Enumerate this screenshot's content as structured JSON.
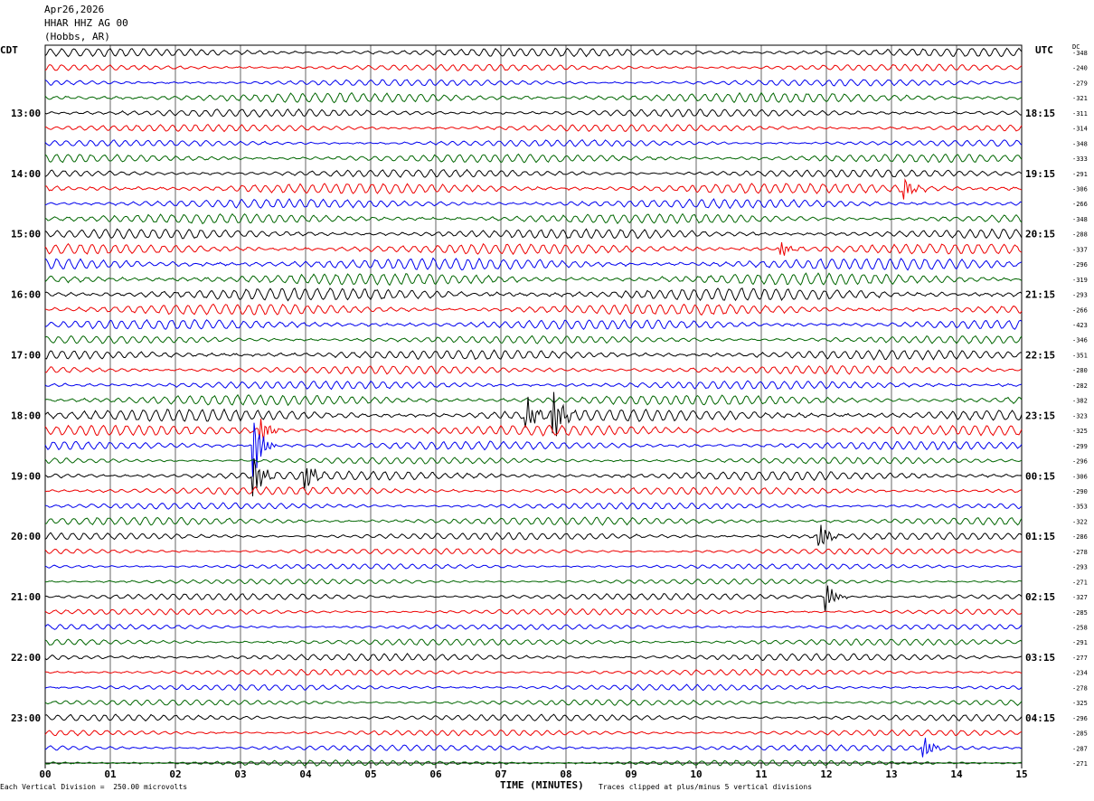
{
  "header": {
    "date": "Apr26,2026",
    "station": "HHAR HHZ AG 00",
    "location": "(Hobbs, AR)"
  },
  "left_label": "CDT",
  "right_label": "UTC",
  "dc_label": "DC",
  "footer": {
    "scale_note": "Each Vertical Division =  250.00 microvolts",
    "xlabel": "TIME (MINUTES)",
    "clip_note": "Traces clipped at plus/minus 5 vertical divisions"
  },
  "colors": {
    "trace_cycle": [
      "#000000",
      "#ee0000",
      "#0000ee",
      "#006600"
    ],
    "grid": "#000000"
  },
  "chart_data": {
    "type": "line",
    "title": "",
    "xlabel": "TIME (MINUTES)",
    "x_range": [
      0,
      15
    ],
    "x_ticks": [
      "00",
      "01",
      "02",
      "03",
      "04",
      "05",
      "06",
      "07",
      "08",
      "09",
      "10",
      "11",
      "12",
      "13",
      "14",
      "15"
    ],
    "rows_per_hour": 4,
    "row_minutes": 15,
    "left_hour_labels": [
      {
        "row": 4,
        "label": "13:00"
      },
      {
        "row": 8,
        "label": "14:00"
      },
      {
        "row": 12,
        "label": "15:00"
      },
      {
        "row": 16,
        "label": "16:00"
      },
      {
        "row": 20,
        "label": "17:00"
      },
      {
        "row": 24,
        "label": "18:00"
      },
      {
        "row": 28,
        "label": "19:00"
      },
      {
        "row": 32,
        "label": "20:00"
      },
      {
        "row": 36,
        "label": "21:00"
      },
      {
        "row": 40,
        "label": "22:00"
      },
      {
        "row": 44,
        "label": "23:00"
      }
    ],
    "right_hour_labels": [
      {
        "row": 4,
        "label": "18:15"
      },
      {
        "row": 8,
        "label": "19:15"
      },
      {
        "row": 12,
        "label": "20:15"
      },
      {
        "row": 16,
        "label": "21:15"
      },
      {
        "row": 20,
        "label": "22:15"
      },
      {
        "row": 24,
        "label": "23:15"
      },
      {
        "row": 28,
        "label": "00:15"
      },
      {
        "row": 32,
        "label": "01:15"
      },
      {
        "row": 36,
        "label": "02:15"
      },
      {
        "row": 40,
        "label": "03:15"
      },
      {
        "row": 44,
        "label": "04:15"
      }
    ],
    "dc_offsets": [
      "-348",
      "-240",
      "-279",
      "-321",
      "-311",
      "-314",
      "-348",
      "-333",
      "-291",
      "-306",
      "-266",
      "-348",
      "-288",
      "-337",
      "-296",
      "-319",
      "-293",
      "-266",
      "-423",
      "-346",
      "-351",
      "-280",
      "-282",
      "-382",
      "-323",
      "-325",
      "-299",
      "-296",
      "-306",
      "-290",
      "-353",
      "-322",
      "-286",
      "-278",
      "-293",
      "-271",
      "-327",
      "-285",
      "-258",
      "-291",
      "-277",
      "-234",
      "-278",
      "-325",
      "-296",
      "-285",
      "-287",
      "-271"
    ],
    "trace_amplitude_divisions": [
      1.3,
      1.0,
      1.0,
      1.5,
      1.2,
      1.1,
      1.0,
      1.3,
      1.2,
      1.6,
      1.4,
      1.5,
      1.5,
      1.6,
      1.8,
      1.8,
      1.9,
      1.7,
      1.5,
      1.2,
      1.5,
      1.3,
      1.3,
      1.6,
      1.9,
      1.6,
      1.3,
      1.0,
      1.4,
      1.2,
      1.0,
      1.2,
      1.1,
      0.9,
      0.8,
      0.8,
      1.0,
      0.9,
      0.8,
      1.0,
      1.1,
      0.9,
      0.9,
      0.9,
      1.0,
      0.9,
      0.9,
      0.9
    ],
    "events": [
      {
        "row": 9,
        "minute": 13.2,
        "amplitude": 4
      },
      {
        "row": 13,
        "minute": 11.3,
        "amplitude": 3
      },
      {
        "row": 24,
        "minute": 7.4,
        "amplitude": 6
      },
      {
        "row": 24,
        "minute": 7.8,
        "amplitude": 10
      },
      {
        "row": 25,
        "minute": 3.3,
        "amplitude": 5
      },
      {
        "row": 26,
        "minute": 3.2,
        "amplitude": 12
      },
      {
        "row": 28,
        "minute": 3.2,
        "amplitude": 8
      },
      {
        "row": 28,
        "minute": 4.0,
        "amplitude": 5
      },
      {
        "row": 32,
        "minute": 11.9,
        "amplitude": 5
      },
      {
        "row": 36,
        "minute": 12.0,
        "amplitude": 5
      },
      {
        "row": 46,
        "minute": 13.5,
        "amplitude": 4
      }
    ]
  }
}
